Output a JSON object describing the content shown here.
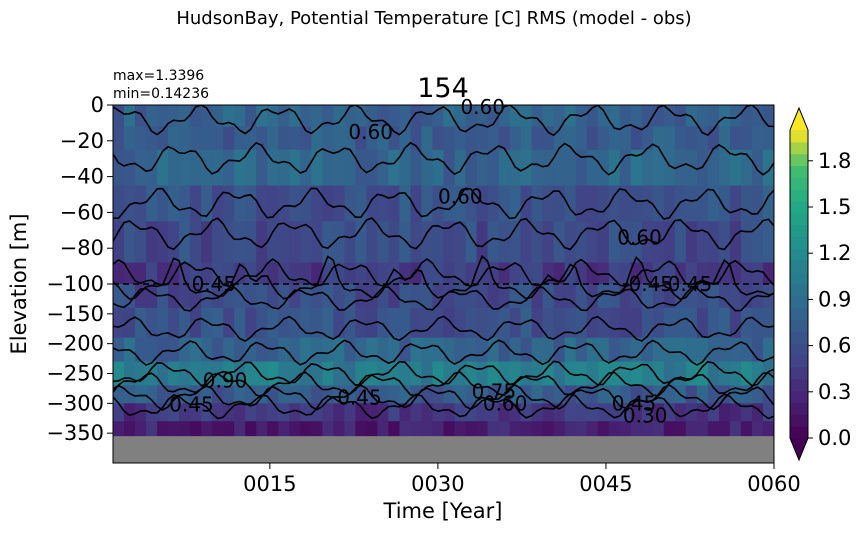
{
  "chart_data": {
    "type": "heatmap",
    "suptitle": "HudsonBay, Potential Temperature [C] RMS (model - obs)",
    "title": "154",
    "stats": {
      "max": "max=1.3396",
      "min": "min=0.14236"
    },
    "xlabel": "Time [Year]",
    "ylabel": "Elevation [m]",
    "xlim": [
      1,
      60
    ],
    "x_ticks": [
      {
        "value": 15,
        "label": "0015"
      },
      {
        "value": 30,
        "label": "0030"
      },
      {
        "value": 45,
        "label": "0045"
      },
      {
        "value": 60,
        "label": "0060"
      }
    ],
    "y_ticks_upper": [
      {
        "value": 0,
        "label": "0"
      },
      {
        "value": -20,
        "label": "−20"
      },
      {
        "value": -40,
        "label": "−40"
      },
      {
        "value": -60,
        "label": "−60"
      },
      {
        "value": -80,
        "label": "−80"
      },
      {
        "value": -100,
        "label": "−100"
      }
    ],
    "y_ticks_lower": [
      {
        "value": -100,
        "label": ""
      },
      {
        "value": -150,
        "label": "−150"
      },
      {
        "value": -200,
        "label": "−200"
      },
      {
        "value": -250,
        "label": "−250"
      },
      {
        "value": -300,
        "label": "−300"
      },
      {
        "value": -350,
        "label": "−350"
      }
    ],
    "ylim_upper": [
      -100,
      0
    ],
    "ylim_lower": [
      -400,
      -100
    ],
    "bathymetry_depth": -355,
    "colorbar": {
      "range": [
        0,
        2.0
      ],
      "ticks": [
        {
          "value": 0.0,
          "label": "0.0"
        },
        {
          "value": 0.3,
          "label": "0.3"
        },
        {
          "value": 0.6,
          "label": "0.6"
        },
        {
          "value": 0.9,
          "label": "0.9"
        },
        {
          "value": 1.2,
          "label": "1.2"
        },
        {
          "value": 1.5,
          "label": "1.5"
        },
        {
          "value": 1.8,
          "label": "1.8"
        }
      ],
      "extend": "both",
      "colormap": "viridis"
    },
    "contour_labels": [
      {
        "text": "0.60",
        "x": 34,
        "y": -1
      },
      {
        "text": "0.60",
        "x": 24,
        "y": -15
      },
      {
        "text": "0.60",
        "x": 32,
        "y": -51
      },
      {
        "text": "0.60",
        "x": 48,
        "y": -74
      },
      {
        "text": "0.45",
        "x": 10,
        "y": -100
      },
      {
        "text": "0.45",
        "x": 49,
        "y": -100
      },
      {
        "text": "0.45",
        "x": 52.5,
        "y": -100
      },
      {
        "text": "0.90",
        "x": 11,
        "y": -262
      },
      {
        "text": "0.45",
        "x": 8,
        "y": -302
      },
      {
        "text": "0.45",
        "x": 23,
        "y": -290
      },
      {
        "text": "0.75",
        "x": 35,
        "y": -280
      },
      {
        "text": "0.60",
        "x": 36,
        "y": -300
      },
      {
        "text": "0.45",
        "x": 47.5,
        "y": -300
      },
      {
        "text": "0.30",
        "x": 48.5,
        "y": -320
      }
    ],
    "bands": [
      {
        "y0": 0,
        "y1": -12,
        "value": 0.78
      },
      {
        "y0": -12,
        "y1": -25,
        "value": 0.72
      },
      {
        "y0": -25,
        "y1": -45,
        "value": 0.82
      },
      {
        "y0": -45,
        "y1": -65,
        "value": 0.64
      },
      {
        "y0": -65,
        "y1": -88,
        "value": 0.58
      },
      {
        "y0": -88,
        "y1": -100,
        "value": 0.42
      },
      {
        "y0": -100,
        "y1": -140,
        "value": 0.56
      },
      {
        "y0": -140,
        "y1": -190,
        "value": 0.62
      },
      {
        "y0": -190,
        "y1": -230,
        "value": 0.8
      },
      {
        "y0": -230,
        "y1": -270,
        "value": 1.05
      },
      {
        "y0": -270,
        "y1": -300,
        "value": 0.7
      },
      {
        "y0": -300,
        "y1": -330,
        "value": 0.38
      },
      {
        "y0": -330,
        "y1": -355,
        "value": 0.22
      }
    ]
  }
}
